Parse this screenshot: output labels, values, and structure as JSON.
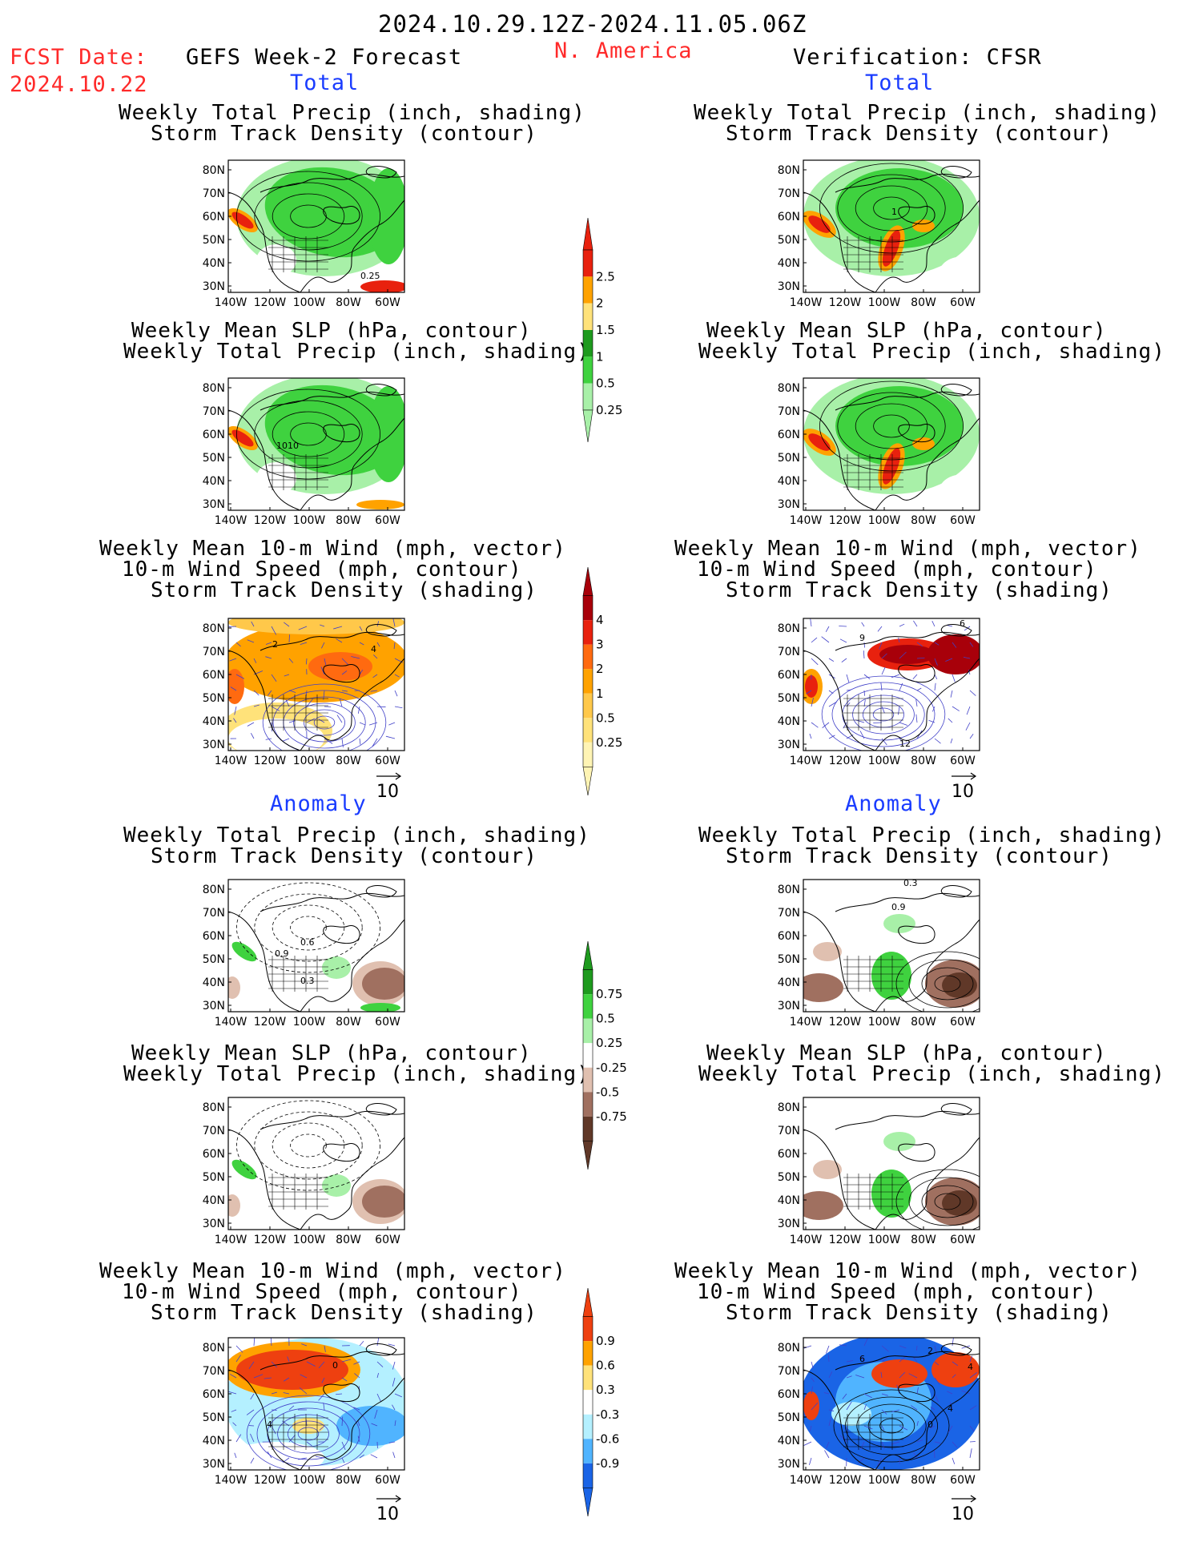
{
  "header": {
    "period": "2024.10.29.12Z-2024.11.05.06Z",
    "fcst_label": "FCST Date:",
    "fcst_date": "2024.10.22",
    "left_title": "GEFS Week-2 Forecast",
    "region": "N. America",
    "right_title": "Verification: CFSR"
  },
  "sections": {
    "total": "Total",
    "anomaly": "Anomaly"
  },
  "axes": {
    "lat_labels": [
      "80N",
      "70N",
      "60N",
      "50N",
      "40N",
      "30N"
    ],
    "lon_labels": [
      "140W",
      "120W",
      "100W",
      "80W",
      "60W"
    ]
  },
  "panel_titles": {
    "precip_track": [
      "Weekly Total Precip (inch, shading)",
      "Storm Track Density (contour)"
    ],
    "slp_precip": [
      "Weekly Mean SLP (hPa, contour)",
      "Weekly Total Precip (inch, shading)"
    ],
    "wind_track": [
      "Weekly Mean 10-m Wind (mph, vector)",
      "10-m Wind Speed (mph, contour)",
      "Storm Track Density (shading)"
    ]
  },
  "panel_labels": {
    "fc_precip_track": "0.25",
    "fc_slp_precip": "1010",
    "fc_wind_track": [
      "2",
      "4"
    ],
    "ob_precip_track": "1",
    "ob_wind_track": [
      "9",
      "6",
      "12"
    ],
    "fa_precip_track": [
      "0.9",
      "0.6",
      "0.3"
    ],
    "oa_precip_track": [
      "0.3",
      "0.9"
    ],
    "fa_wind": [
      "4",
      "0"
    ],
    "oa_wind": [
      "6",
      "2",
      "4",
      "4",
      "0"
    ]
  },
  "vector_reference": "10",
  "colorbars": {
    "precip_total": {
      "labels": [
        "2.5",
        "2",
        "1.5",
        "1",
        "0.5",
        "0.25"
      ],
      "colors": [
        "#e8210e",
        "#ffa200",
        "#ffe27a",
        "#1e9a1e",
        "#3fd23f",
        "#a8f0a8"
      ]
    },
    "track_total": {
      "labels": [
        "4",
        "3",
        "2",
        "1",
        "0.5",
        "0.25"
      ],
      "colors": [
        "#a8000a",
        "#e8210e",
        "#ff6a10",
        "#ffa200",
        "#ffc84a",
        "#ffe27a",
        "#fff4b4"
      ]
    },
    "precip_anom": {
      "labels": [
        "0.75",
        "0.5",
        "0.25",
        "-0.25",
        "-0.5",
        "-0.75"
      ],
      "colors": [
        "#1e9a1e",
        "#3fd23f",
        "#a8f0a8",
        "#ffffff",
        "#e0c0b0",
        "#a07060",
        "#603828"
      ]
    },
    "track_anom": {
      "labels": [
        "0.9",
        "0.6",
        "0.3",
        "-0.3",
        "-0.6",
        "-0.9"
      ],
      "colors": [
        "#ee4010",
        "#ffa200",
        "#ffe27a",
        "#ffffff",
        "#b4f0ff",
        "#50b4ff",
        "#1a64e6"
      ]
    }
  },
  "colors": {
    "green_light": "#a8f0a8",
    "green": "#3fd23f",
    "green_dark": "#1e9a1e",
    "red": "#e8210e",
    "orange": "#ffa200",
    "yellow": "#ffe27a",
    "brown_light": "#e0c0b0",
    "brown": "#a07060",
    "brown_dark": "#603828",
    "dark_red": "#a8000a",
    "blue_light": "#b4f0ff",
    "blue": "#50b4ff",
    "blue_dark": "#1a64e6",
    "vector": "#4040c8"
  }
}
